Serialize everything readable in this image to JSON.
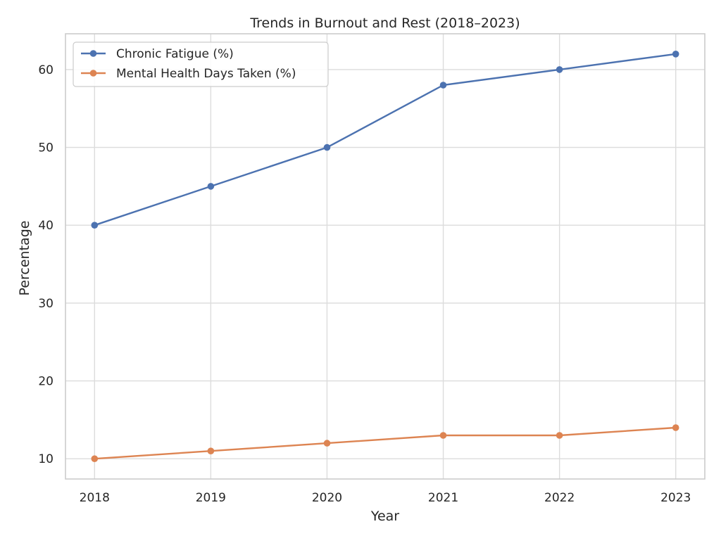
{
  "chart_data": {
    "type": "line",
    "title": "Trends in Burnout and Rest (2018–2023)",
    "xlabel": "Year",
    "ylabel": "Percentage",
    "x": [
      2018,
      2019,
      2020,
      2021,
      2022,
      2023
    ],
    "x_ticks": [
      "2018",
      "2019",
      "2020",
      "2021",
      "2022",
      "2023"
    ],
    "y_ticks": [
      "10",
      "20",
      "30",
      "40",
      "50",
      "60"
    ],
    "xlim": [
      2017.75,
      2023.25
    ],
    "ylim": [
      7.4,
      64.6
    ],
    "grid": true,
    "legend_position": "upper-left",
    "series": [
      {
        "name": "Chronic Fatigue (%)",
        "values": [
          40,
          45,
          50,
          58,
          60,
          62
        ],
        "color": "#4c72b0",
        "marker": "circle"
      },
      {
        "name": "Mental Health Days Taken (%)",
        "values": [
          10,
          11,
          12,
          13,
          13,
          14
        ],
        "color": "#dd8452",
        "marker": "circle"
      }
    ]
  }
}
